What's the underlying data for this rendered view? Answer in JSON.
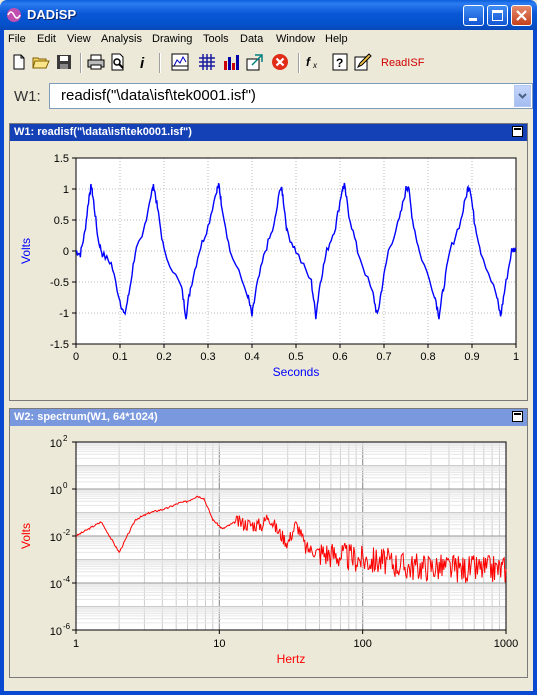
{
  "window": {
    "title": "DADiSP"
  },
  "menu": [
    "File",
    "Edit",
    "View",
    "Analysis",
    "Drawing",
    "Tools",
    "Data",
    "Window",
    "Help"
  ],
  "toolbar": {
    "icons": [
      "new-file-icon",
      "open-folder-icon",
      "save-icon",
      "print-icon",
      "print-preview-icon",
      "info-icon",
      "chart-icon",
      "grid-icon",
      "bar-chart-icon",
      "zoom-icon",
      "stop-icon",
      "function-icon",
      "help-icon",
      "edit-icon"
    ],
    "readisf_label": "ReadISF"
  },
  "formula": {
    "label": "W1:",
    "value": "readisf(\"\\data\\isf\\tek0001.isf\")"
  },
  "w1": {
    "title": "W1: readisf(\"\\data\\isf\\tek0001.isf\")",
    "active": true,
    "color": "#0000ff"
  },
  "w2": {
    "title": "W2: spectrum(W1, 64*1024)",
    "active": false,
    "color": "#ff0000"
  },
  "chart_data": [
    {
      "type": "line",
      "window": "W1",
      "xlabel": "Seconds",
      "ylabel": "Volts",
      "xlim": [
        0,
        1
      ],
      "ylim": [
        -1.5,
        1.5
      ],
      "xticks": [
        "0",
        "0.1",
        "0.2",
        "0.3",
        "0.4",
        "0.5",
        "0.6",
        "0.7",
        "0.8",
        "0.9",
        "1"
      ],
      "yticks": [
        "1.5",
        "1",
        "0.5",
        "0",
        "-0.5",
        "-1",
        "-1.5"
      ],
      "grid": true,
      "series": [
        {
          "x": [
            0,
            0.01,
            0.02,
            0.03,
            0.035,
            0.04,
            0.05,
            0.06,
            0.08,
            0.1,
            0.11,
            0.12,
            0.135,
            0.15,
            0.17,
            0.177,
            0.185,
            0.2,
            0.24,
            0.25,
            0.26,
            0.28,
            0.3,
            0.32,
            0.325,
            0.33,
            0.35,
            0.39,
            0.4,
            0.41,
            0.43,
            0.45,
            0.465,
            0.47,
            0.48,
            0.5,
            0.535,
            0.545,
            0.555,
            0.57,
            0.59,
            0.605,
            0.61,
            0.62,
            0.64,
            0.675,
            0.685,
            0.695,
            0.71,
            0.735,
            0.75,
            0.755,
            0.765,
            0.78,
            0.815,
            0.825,
            0.835,
            0.85,
            0.875,
            0.89,
            0.895,
            0.905,
            0.92,
            0.955,
            0.965,
            0.975,
            0.99,
            1.0
          ],
          "y": [
            0.0,
            -0.05,
            0.3,
            0.9,
            1.05,
            0.8,
            0.2,
            -0.05,
            -0.2,
            -0.8,
            -1.05,
            -0.7,
            0.0,
            0.2,
            0.9,
            1.05,
            0.7,
            0.0,
            -0.6,
            -1.05,
            -0.6,
            0.0,
            0.4,
            1.0,
            1.05,
            0.8,
            0.0,
            -0.7,
            -1.05,
            -0.6,
            0.0,
            0.4,
            1.05,
            0.9,
            0.3,
            0.0,
            -0.5,
            -1.05,
            -0.5,
            0.0,
            0.4,
            1.0,
            1.05,
            0.6,
            0.0,
            -0.7,
            -1.05,
            -0.6,
            0.0,
            0.5,
            1.0,
            1.05,
            0.5,
            0.0,
            -0.7,
            -1.05,
            -0.6,
            0.0,
            0.5,
            1.0,
            1.05,
            0.5,
            0.0,
            -0.7,
            -1.05,
            -0.6,
            0.0,
            0.05
          ]
        }
      ]
    },
    {
      "type": "line",
      "window": "W2",
      "xlabel": "Hertz",
      "ylabel": "Volts",
      "xscale": "log",
      "yscale": "log",
      "xlim": [
        1,
        1000
      ],
      "ylim": [
        1e-06,
        100
      ],
      "xticks": [
        "1",
        "10",
        "100",
        "1000"
      ],
      "yticks": [
        "10^2",
        "10^0",
        "10^-2",
        "10^-4",
        "10^-6"
      ],
      "grid": true,
      "series": [
        {
          "x": [
            1,
            1.5,
            2,
            2.6,
            3.3,
            4.3,
            5.2,
            6,
            7,
            7.8,
            9,
            10.5,
            13,
            17,
            20,
            22,
            25,
            30,
            34,
            36,
            40,
            50,
            70,
            100,
            150,
            200,
            300,
            500,
            700,
            1000
          ],
          "y": [
            0.01,
            0.04,
            0.002,
            0.05,
            0.1,
            0.15,
            0.25,
            0.3,
            0.5,
            0.4,
            0.05,
            0.02,
            0.04,
            0.03,
            0.03,
            0.08,
            0.02,
            0.005,
            0.03,
            0.02,
            0.003,
            0.002,
            0.0015,
            0.001,
            0.0008,
            0.0005,
            0.0005,
            0.0004,
            0.0004,
            0.0004
          ]
        }
      ]
    }
  ]
}
